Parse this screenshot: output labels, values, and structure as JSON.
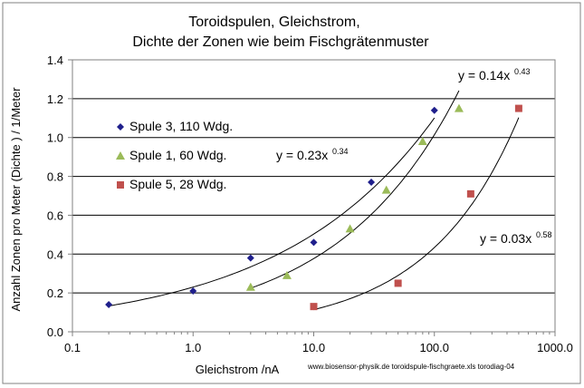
{
  "chart_data": {
    "type": "scatter",
    "title_line1": "Toroidspulen, Gleichstrom,",
    "title_line2": "Dichte der Zonen wie beim Fischgrätenmuster",
    "xlabel": "Gleichstrom /nA",
    "ylabel": "Anzahl  Zonen  pro Meter (Dichte ) / 1/Meter",
    "xscale": "log",
    "xlim": [
      0.1,
      1000
    ],
    "ylim": [
      0,
      1.4
    ],
    "x_tick_values": [
      0.1,
      1,
      10,
      100,
      1000
    ],
    "x_tick_labels": [
      "0.1",
      "1.0",
      "10.0",
      "100.0",
      "1000.0"
    ],
    "y_tick_values": [
      0,
      0.2,
      0.4,
      0.6,
      0.8,
      1.0,
      1.2,
      1.4
    ],
    "y_tick_labels": [
      "0.0",
      "0.2",
      "0.4",
      "0.6",
      "0.8",
      "1.0",
      "1.2",
      "1.4"
    ],
    "grid": "horizontal",
    "series": [
      {
        "name": "Spule 3,  110 Wdg.",
        "marker": "diamond",
        "color": "#1f1f8c",
        "x": [
          0.2,
          1.0,
          3.0,
          10.0,
          30.0,
          100.0
        ],
        "y": [
          0.14,
          0.21,
          0.38,
          0.46,
          0.77,
          1.14
        ],
        "fit": {
          "a": 0.23,
          "b": 0.34,
          "x_from": 0.2,
          "x_to": 100
        }
      },
      {
        "name": "Spule 1,  60 Wdg.",
        "marker": "triangle",
        "color": "#9bbb59",
        "x": [
          3.0,
          6.0,
          20.0,
          40.0,
          80.0,
          160.0
        ],
        "y": [
          0.23,
          0.29,
          0.53,
          0.73,
          0.98,
          1.15
        ],
        "fit": {
          "a": 0.14,
          "b": 0.43,
          "x_from": 3,
          "x_to": 160
        }
      },
      {
        "name": "Spule 5,  28 Wdg.",
        "marker": "square",
        "color": "#c0504d",
        "x": [
          10.0,
          50.0,
          200.0,
          500.0
        ],
        "y": [
          0.13,
          0.25,
          0.71,
          1.15
        ],
        "fit": {
          "a": 0.03,
          "b": 0.58,
          "x_from": 10,
          "x_to": 500
        }
      }
    ],
    "equations": [
      {
        "base": "y = 0.14x",
        "exp": "0.43"
      },
      {
        "base": "y = 0.23x",
        "exp": "0.34"
      },
      {
        "base": "y = 0.03x",
        "exp": "0.58"
      }
    ],
    "credit": "www.biosensor-physik.de  toroidspule-fischgraete.xls torodiag-04"
  }
}
